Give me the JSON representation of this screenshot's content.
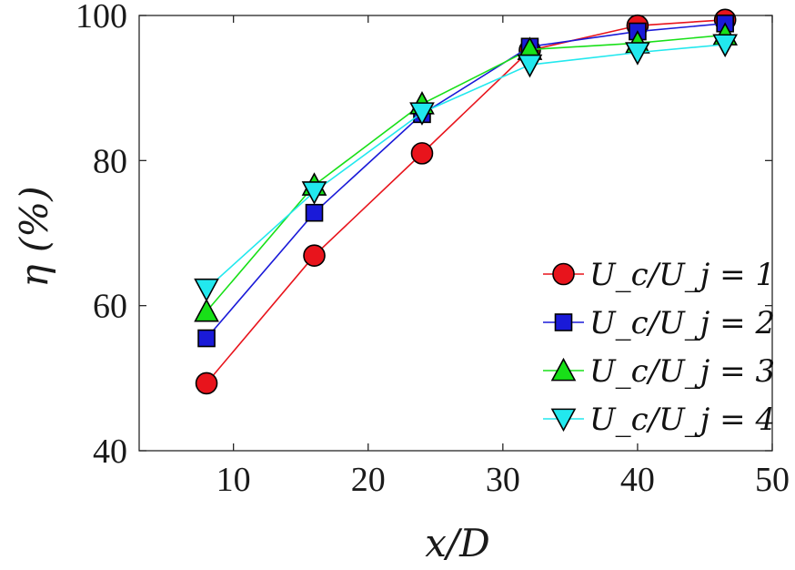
{
  "chart_data": {
    "type": "line",
    "title": "",
    "xlabel": "x/D",
    "ylabel": "η (%)",
    "xlim": [
      3,
      50
    ],
    "ylim": [
      40,
      100
    ],
    "xticks": [
      10,
      20,
      30,
      40,
      50
    ],
    "yticks": [
      40,
      60,
      80,
      100
    ],
    "x_tick_labels": [
      "10",
      "20",
      "30",
      "40",
      "50"
    ],
    "y_tick_labels": [
      "40",
      "60",
      "80",
      "100"
    ],
    "grid": false,
    "legend_position": "bottom-right",
    "series": [
      {
        "name": "U_c/U_j = 1",
        "color": "#e8141c",
        "marker": "circle",
        "x": [
          8,
          16,
          24,
          32,
          40,
          46.5
        ],
        "y": [
          49.3,
          66.9,
          81.0,
          95.2,
          98.6,
          99.4
        ]
      },
      {
        "name": "U_c/U_j = 2",
        "color": "#1a1ad8",
        "marker": "square",
        "x": [
          8,
          16,
          24,
          32,
          40,
          46.5
        ],
        "y": [
          55.5,
          72.8,
          86.4,
          95.7,
          97.8,
          98.9
        ]
      },
      {
        "name": "U_c/U_j = 3",
        "color": "#18e018",
        "marker": "triangle-up",
        "x": [
          8,
          16,
          24,
          32,
          40,
          46.5
        ],
        "y": [
          59.2,
          76.6,
          87.8,
          95.3,
          96.2,
          97.3
        ]
      },
      {
        "name": "U_c/U_j = 4",
        "color": "#22e8ee",
        "marker": "triangle-down",
        "x": [
          8,
          16,
          24,
          32,
          40,
          46.5
        ],
        "y": [
          62.3,
          75.7,
          86.6,
          93.2,
          94.9,
          96.0
        ]
      }
    ]
  }
}
